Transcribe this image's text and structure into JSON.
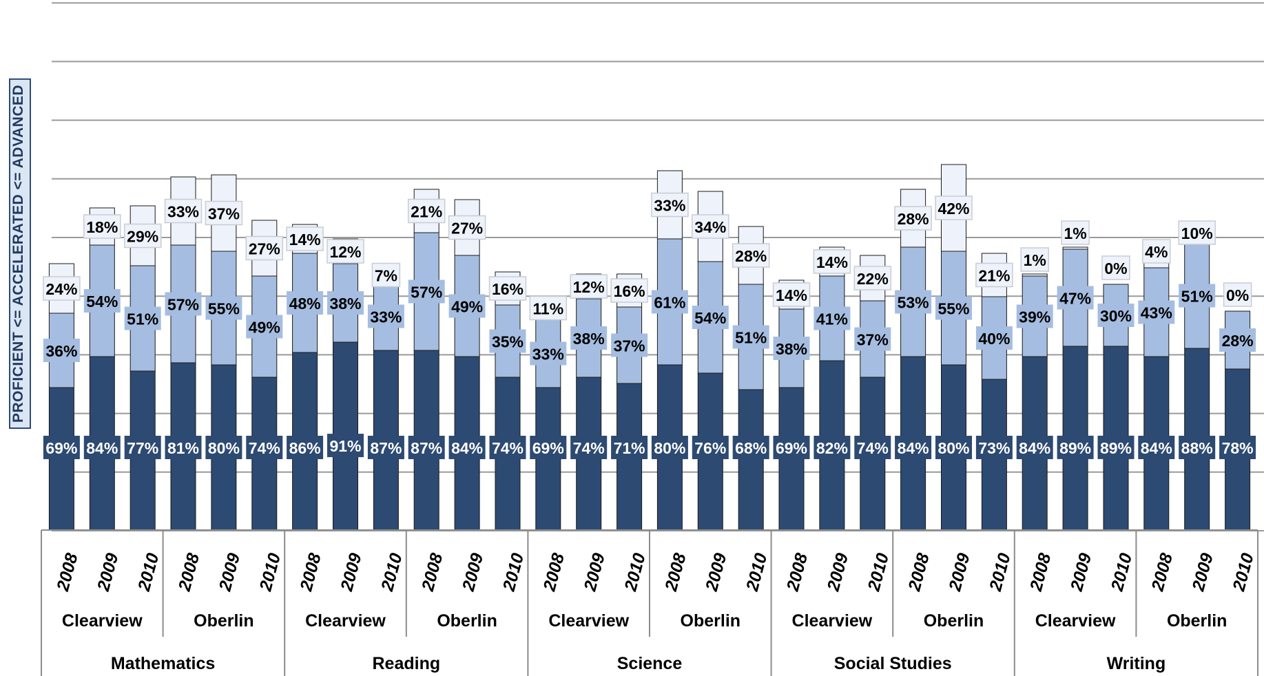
{
  "chart_data": {
    "type": "bar",
    "stacked": true,
    "ylabel": "PROFICIENT <= ACCELERATED <= ADVANCED",
    "colors": {
      "proficient": "#2d4a72",
      "accelerated": "#a5bde0",
      "advanced": "#eef3fb",
      "outline": "#1a1a1a"
    },
    "subjects": [
      "Mathematics",
      "Reading",
      "Science",
      "Social Studies",
      "Writing"
    ],
    "schools": [
      "Clearview",
      "Oberlin"
    ],
    "years": [
      "2008",
      "2009",
      "2010"
    ],
    "bars": [
      {
        "subject": "Mathematics",
        "school": "Clearview",
        "year": "2008",
        "proficient": 69,
        "accelerated": 36,
        "advanced": 24,
        "proficient_label": "69%",
        "accelerated_label": "36%",
        "advanced_label": "24%"
      },
      {
        "subject": "Mathematics",
        "school": "Clearview",
        "year": "2009",
        "proficient": 84,
        "accelerated": 54,
        "advanced": 18,
        "proficient_label": "84%",
        "accelerated_label": "54%",
        "advanced_label": "18%"
      },
      {
        "subject": "Mathematics",
        "school": "Clearview",
        "year": "2010",
        "proficient": 77,
        "accelerated": 51,
        "advanced": 29,
        "proficient_label": "77%",
        "accelerated_label": "51%",
        "advanced_label": "29%"
      },
      {
        "subject": "Mathematics",
        "school": "Oberlin",
        "year": "2008",
        "proficient": 81,
        "accelerated": 57,
        "advanced": 33,
        "proficient_label": "81%",
        "accelerated_label": "57%",
        "advanced_label": "33%"
      },
      {
        "subject": "Mathematics",
        "school": "Oberlin",
        "year": "2009",
        "proficient": 80,
        "accelerated": 55,
        "advanced": 37,
        "proficient_label": "80%",
        "accelerated_label": "55%",
        "advanced_label": "37%"
      },
      {
        "subject": "Mathematics",
        "school": "Oberlin",
        "year": "2010",
        "proficient": 74,
        "accelerated": 49,
        "advanced": 27,
        "proficient_label": "74%",
        "accelerated_label": "49%",
        "advanced_label": "27%"
      },
      {
        "subject": "Reading",
        "school": "Clearview",
        "year": "2008",
        "proficient": 86,
        "accelerated": 48,
        "advanced": 14,
        "proficient_label": "86%",
        "accelerated_label": "48%",
        "advanced_label": "14%"
      },
      {
        "subject": "Reading",
        "school": "Clearview",
        "year": "2009",
        "proficient": 91,
        "accelerated": 38,
        "advanced": 12,
        "proficient_label": "91%",
        "accelerated_label": "38%",
        "advanced_label": "12%"
      },
      {
        "subject": "Reading",
        "school": "Clearview",
        "year": "2010",
        "proficient": 87,
        "accelerated": 33,
        "advanced": 7,
        "proficient_label": "87%",
        "accelerated_label": "33%",
        "advanced_label": "7%"
      },
      {
        "subject": "Reading",
        "school": "Oberlin",
        "year": "2008",
        "proficient": 87,
        "accelerated": 57,
        "advanced": 21,
        "proficient_label": "87%",
        "accelerated_label": "57%",
        "advanced_label": "21%"
      },
      {
        "subject": "Reading",
        "school": "Oberlin",
        "year": "2009",
        "proficient": 84,
        "accelerated": 49,
        "advanced": 27,
        "proficient_label": "84%",
        "accelerated_label": "49%",
        "advanced_label": "27%"
      },
      {
        "subject": "Reading",
        "school": "Oberlin",
        "year": "2010",
        "proficient": 74,
        "accelerated": 35,
        "advanced": 16,
        "proficient_label": "74%",
        "accelerated_label": "35%",
        "advanced_label": "16%"
      },
      {
        "subject": "Science",
        "school": "Clearview",
        "year": "2008",
        "proficient": 69,
        "accelerated": 33,
        "advanced": 11,
        "proficient_label": "69%",
        "accelerated_label": "33%",
        "advanced_label": "11%"
      },
      {
        "subject": "Science",
        "school": "Clearview",
        "year": "2009",
        "proficient": 74,
        "accelerated": 38,
        "advanced": 12,
        "proficient_label": "74%",
        "accelerated_label": "38%",
        "advanced_label": "12%"
      },
      {
        "subject": "Science",
        "school": "Clearview",
        "year": "2010",
        "proficient": 71,
        "accelerated": 37,
        "advanced": 16,
        "proficient_label": "71%",
        "accelerated_label": "37%",
        "advanced_label": "16%"
      },
      {
        "subject": "Science",
        "school": "Oberlin",
        "year": "2008",
        "proficient": 80,
        "accelerated": 61,
        "advanced": 33,
        "proficient_label": "80%",
        "accelerated_label": "61%",
        "advanced_label": "33%"
      },
      {
        "subject": "Science",
        "school": "Oberlin",
        "year": "2009",
        "proficient": 76,
        "accelerated": 54,
        "advanced": 34,
        "proficient_label": "76%",
        "accelerated_label": "54%",
        "advanced_label": "34%"
      },
      {
        "subject": "Science",
        "school": "Oberlin",
        "year": "2010",
        "proficient": 68,
        "accelerated": 51,
        "advanced": 28,
        "proficient_label": "68%",
        "accelerated_label": "51%",
        "advanced_label": "28%"
      },
      {
        "subject": "Social Studies",
        "school": "Clearview",
        "year": "2008",
        "proficient": 69,
        "accelerated": 38,
        "advanced": 14,
        "proficient_label": "69%",
        "accelerated_label": "38%",
        "advanced_label": "14%"
      },
      {
        "subject": "Social Studies",
        "school": "Clearview",
        "year": "2009",
        "proficient": 82,
        "accelerated": 41,
        "advanced": 14,
        "proficient_label": "82%",
        "accelerated_label": "41%",
        "advanced_label": "14%"
      },
      {
        "subject": "Social Studies",
        "school": "Clearview",
        "year": "2010",
        "proficient": 74,
        "accelerated": 37,
        "advanced": 22,
        "proficient_label": "74%",
        "accelerated_label": "37%",
        "advanced_label": "22%"
      },
      {
        "subject": "Social Studies",
        "school": "Oberlin",
        "year": "2008",
        "proficient": 84,
        "accelerated": 53,
        "advanced": 28,
        "proficient_label": "84%",
        "accelerated_label": "53%",
        "advanced_label": "28%"
      },
      {
        "subject": "Social Studies",
        "school": "Oberlin",
        "year": "2009",
        "proficient": 80,
        "accelerated": 55,
        "advanced": 42,
        "proficient_label": "80%",
        "accelerated_label": "55%",
        "advanced_label": "42%"
      },
      {
        "subject": "Social Studies",
        "school": "Oberlin",
        "year": "2010",
        "proficient": 73,
        "accelerated": 40,
        "advanced": 21,
        "proficient_label": "73%",
        "accelerated_label": "40%",
        "advanced_label": "21%"
      },
      {
        "subject": "Writing",
        "school": "Clearview",
        "year": "2008",
        "proficient": 84,
        "accelerated": 39,
        "advanced": 1,
        "proficient_label": "84%",
        "accelerated_label": "39%",
        "advanced_label": "1%"
      },
      {
        "subject": "Writing",
        "school": "Clearview",
        "year": "2009",
        "proficient": 89,
        "accelerated": 47,
        "advanced": 1,
        "proficient_label": "89%",
        "accelerated_label": "47%",
        "advanced_label": "1%"
      },
      {
        "subject": "Writing",
        "school": "Clearview",
        "year": "2010",
        "proficient": 89,
        "accelerated": 30,
        "advanced": 0,
        "proficient_label": "89%",
        "accelerated_label": "30%",
        "advanced_label": "0%"
      },
      {
        "subject": "Writing",
        "school": "Oberlin",
        "year": "2008",
        "proficient": 84,
        "accelerated": 43,
        "advanced": 4,
        "proficient_label": "84%",
        "accelerated_label": "43%",
        "advanced_label": "4%"
      },
      {
        "subject": "Writing",
        "school": "Oberlin",
        "year": "2009",
        "proficient": 88,
        "accelerated": 51,
        "advanced": 10,
        "proficient_label": "88%",
        "accelerated_label": "51%",
        "advanced_label": "10%"
      },
      {
        "subject": "Writing",
        "school": "Oberlin",
        "year": "2010",
        "proficient": 78,
        "accelerated": 28,
        "advanced": 0,
        "proficient_label": "78%",
        "accelerated_label": "28%",
        "advanced_label": "0%"
      }
    ]
  }
}
